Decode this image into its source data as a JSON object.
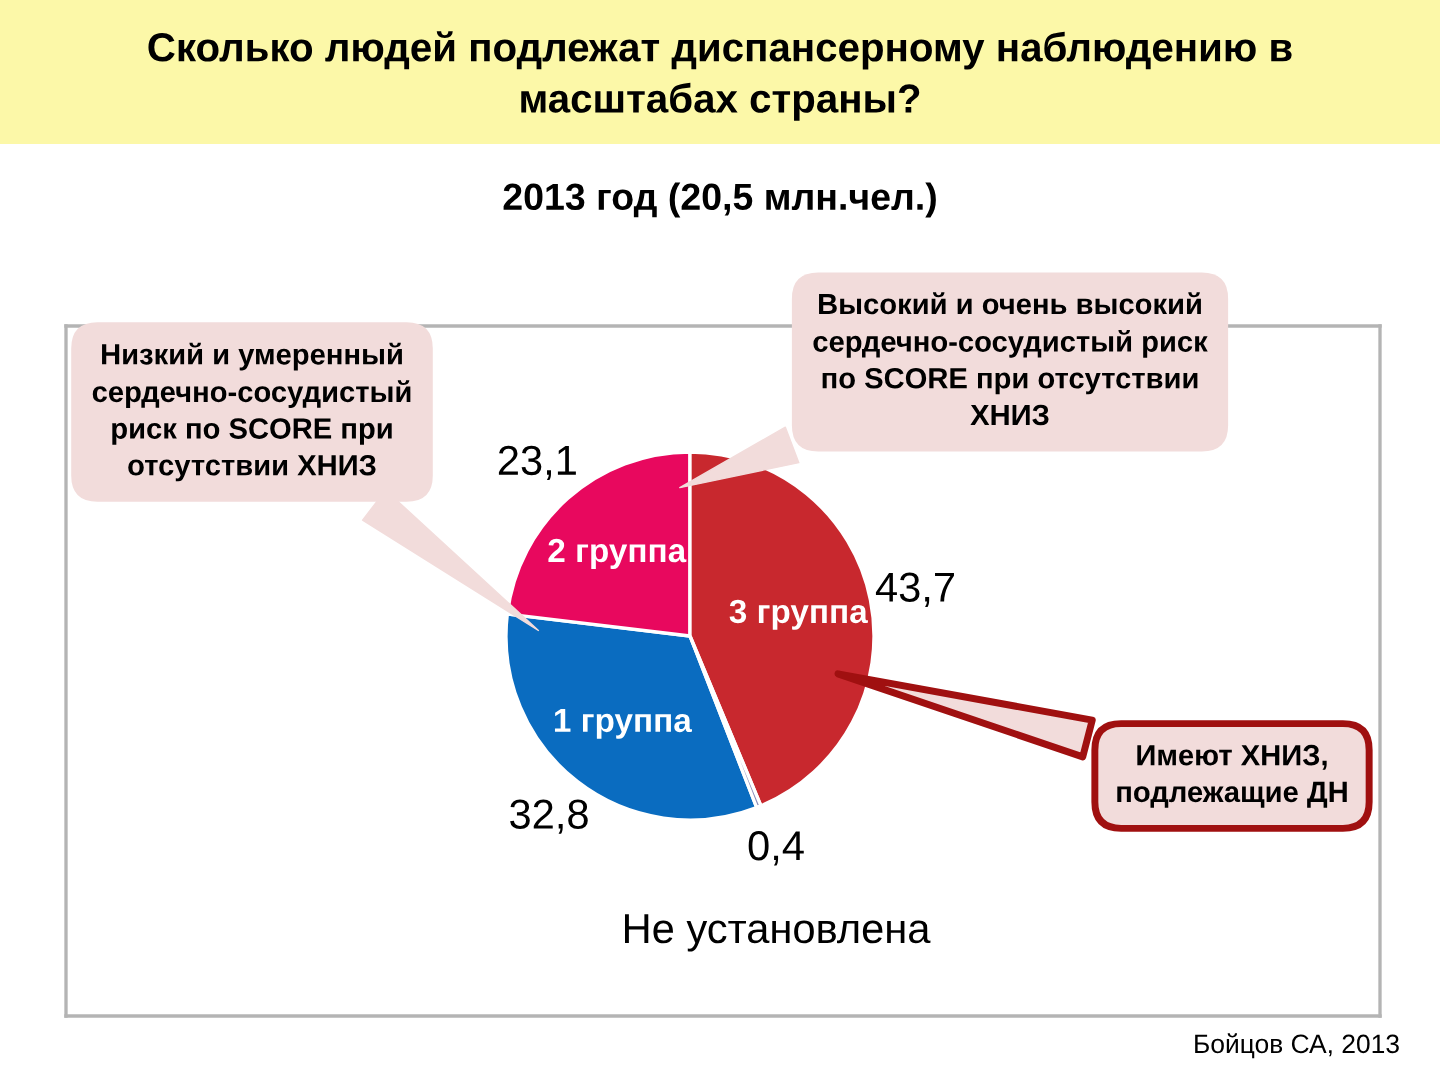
{
  "chart_data": {
    "type": "pie",
    "title": "Сколько людей подлежат диспансерному наблюдению в\nмасштабах страны?",
    "subtitle": "2013 год (20,5 млн.чел.)",
    "categories": [
      "1 группа",
      "2 группа",
      "3 группа",
      "Не установлена"
    ],
    "values": [
      32.8,
      23.1,
      43.7,
      0.4
    ],
    "value_labels": [
      "32,8",
      "23,1",
      "43,7",
      "0,4"
    ],
    "colors": [
      "#0a6cc0",
      "#e8085e",
      "#c8282e",
      "#8a8ab8"
    ],
    "annotations": [
      "Низкий и умеренный\nсердечно-сосудистый\nриск по SCORE при\nотсутствии ХНИЗ",
      "Высокий и очень высокий\nсердечно-сосудистый риск\nпо SCORE при отсутствии\nХНИЗ",
      "Имеют ХНИЗ,\nподлежащие ДН",
      "Бойцов СА, 2013"
    ]
  }
}
